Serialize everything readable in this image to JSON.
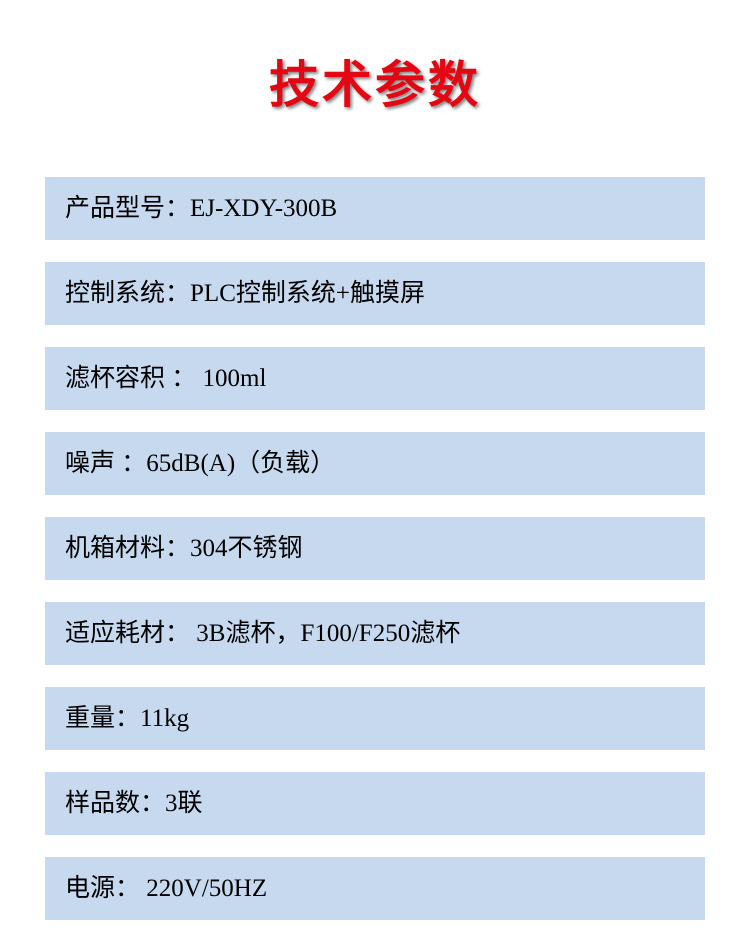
{
  "title": "技术参数",
  "title_color": "#e30613",
  "title_fontsize": 50,
  "row_background": "#c6d9ef",
  "row_fontsize": 25,
  "row_text_color": "#000000",
  "page_background": "#ffffff",
  "specs": [
    {
      "label": "产品型号：",
      "value": "EJ-XDY-300B"
    },
    {
      "label": "控制系统：",
      "value": "PLC控制系统+触摸屏"
    },
    {
      "label": "滤杯容积 ：  ",
      "value": "100ml"
    },
    {
      "label": "噪声 ：",
      "value": "65dB(A)（负载）"
    },
    {
      "label": "机箱材料：",
      "value": "304不锈钢"
    },
    {
      "label": "适应耗材：  ",
      "value": "3B滤杯，F100/F250滤杯"
    },
    {
      "label": "重量：",
      "value": "11kg"
    },
    {
      "label": "样品数：",
      "value": "3联"
    },
    {
      "label": "电源：  ",
      "value": "220V/50HZ"
    }
  ]
}
